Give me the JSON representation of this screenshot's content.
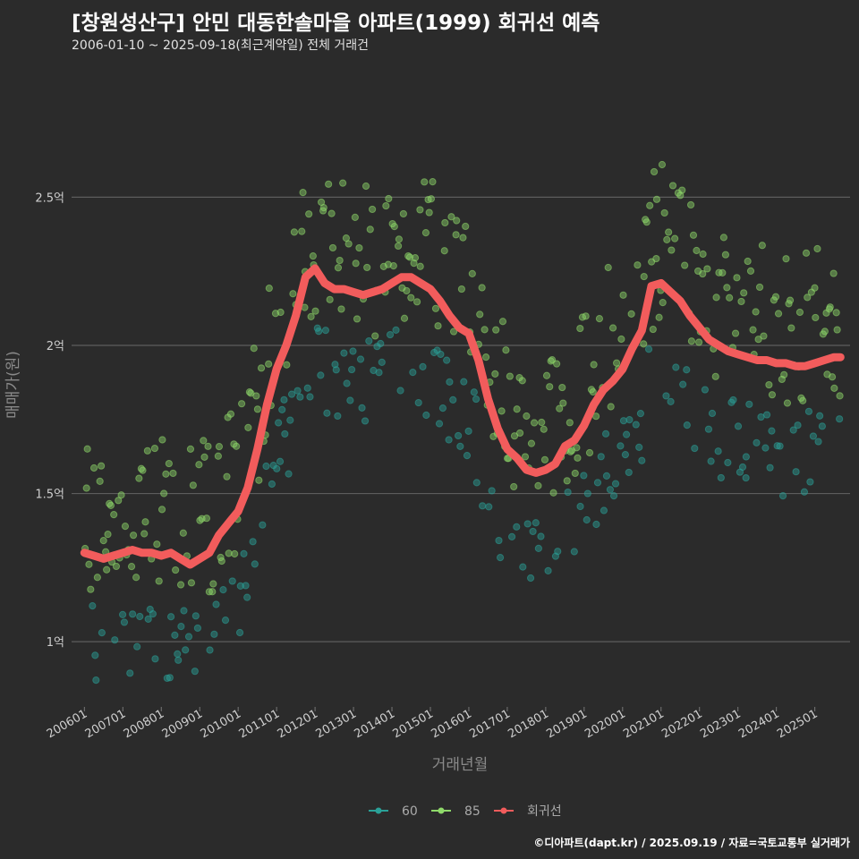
{
  "header": {
    "title": "[창원성산구] 안민 대동한솔마을 아파트(1999) 회귀선 예측",
    "subtitle": "2006-01-10 ~ 2025-09-18(최근계약일) 전체 거래건"
  },
  "credit": "©디아파트(dapt.kr) / 2025.09.19 / 자료=국토교통부 실거래가",
  "colors": {
    "background": "#2b2b2b",
    "series_60": "#2aa198",
    "series_85": "#8fd96a",
    "regression": "#f25c5c",
    "gridline": "#5c5c5c"
  },
  "chart_data": {
    "type": "scatter",
    "xlabel": "거래년월",
    "ylabel": "매매가(원)",
    "x_range": [
      "2005-09",
      "2025-12"
    ],
    "ylim": [
      0.78,
      2.93
    ],
    "y_unit": "억",
    "y_ticks": [
      {
        "value": 1.0,
        "label": "1억"
      },
      {
        "value": 1.5,
        "label": "1.5억"
      },
      {
        "value": 2.0,
        "label": "2억"
      },
      {
        "value": 2.5,
        "label": "2.5억"
      }
    ],
    "x_ticks": [
      "200601",
      "200701",
      "200801",
      "200901",
      "201001",
      "201101",
      "201201",
      "201301",
      "201401",
      "201501",
      "201601",
      "201701",
      "201801",
      "201901",
      "202001",
      "202101",
      "202201",
      "202301",
      "202401",
      "202501"
    ],
    "grid": "horizontal",
    "legend": [
      {
        "name": "60",
        "color": "#2aa198",
        "kind": "point"
      },
      {
        "name": "85",
        "color": "#8fd96a",
        "kind": "point"
      },
      {
        "name": "회귀선",
        "color": "#f25c5c",
        "kind": "line"
      }
    ],
    "legend_position": "bottom",
    "series": [
      {
        "name": "회귀선",
        "type": "line",
        "points": [
          [
            "2006-01",
            1.3
          ],
          [
            "2006-04",
            1.29
          ],
          [
            "2006-07",
            1.28
          ],
          [
            "2006-10",
            1.29
          ],
          [
            "2007-01",
            1.3
          ],
          [
            "2007-04",
            1.31
          ],
          [
            "2007-07",
            1.3
          ],
          [
            "2007-10",
            1.3
          ],
          [
            "2008-01",
            1.29
          ],
          [
            "2008-04",
            1.3
          ],
          [
            "2008-07",
            1.28
          ],
          [
            "2008-10",
            1.26
          ],
          [
            "2009-01",
            1.28
          ],
          [
            "2009-04",
            1.3
          ],
          [
            "2009-07",
            1.36
          ],
          [
            "2009-10",
            1.4
          ],
          [
            "2010-01",
            1.44
          ],
          [
            "2010-04",
            1.52
          ],
          [
            "2010-07",
            1.65
          ],
          [
            "2010-10",
            1.8
          ],
          [
            "2011-01",
            1.92
          ],
          [
            "2011-04",
            2.0
          ],
          [
            "2011-07",
            2.1
          ],
          [
            "2011-10",
            2.23
          ],
          [
            "2012-01",
            2.26
          ],
          [
            "2012-04",
            2.21
          ],
          [
            "2012-07",
            2.19
          ],
          [
            "2012-10",
            2.19
          ],
          [
            "2013-01",
            2.18
          ],
          [
            "2013-04",
            2.17
          ],
          [
            "2013-07",
            2.18
          ],
          [
            "2013-10",
            2.19
          ],
          [
            "2014-01",
            2.21
          ],
          [
            "2014-04",
            2.23
          ],
          [
            "2014-07",
            2.23
          ],
          [
            "2014-10",
            2.21
          ],
          [
            "2015-01",
            2.19
          ],
          [
            "2015-04",
            2.15
          ],
          [
            "2015-07",
            2.1
          ],
          [
            "2015-10",
            2.06
          ],
          [
            "2016-01",
            2.04
          ],
          [
            "2016-04",
            1.95
          ],
          [
            "2016-07",
            1.82
          ],
          [
            "2016-10",
            1.72
          ],
          [
            "2017-01",
            1.65
          ],
          [
            "2017-04",
            1.62
          ],
          [
            "2017-07",
            1.58
          ],
          [
            "2017-10",
            1.57
          ],
          [
            "2018-01",
            1.58
          ],
          [
            "2018-04",
            1.6
          ],
          [
            "2018-07",
            1.66
          ],
          [
            "2018-10",
            1.68
          ],
          [
            "2019-01",
            1.73
          ],
          [
            "2019-04",
            1.8
          ],
          [
            "2019-07",
            1.85
          ],
          [
            "2019-10",
            1.88
          ],
          [
            "2020-01",
            1.92
          ],
          [
            "2020-04",
            1.99
          ],
          [
            "2020-07",
            2.05
          ],
          [
            "2020-10",
            2.2
          ],
          [
            "2021-01",
            2.21
          ],
          [
            "2021-04",
            2.18
          ],
          [
            "2021-07",
            2.15
          ],
          [
            "2021-10",
            2.1
          ],
          [
            "2022-01",
            2.06
          ],
          [
            "2022-04",
            2.02
          ],
          [
            "2022-07",
            2.0
          ],
          [
            "2022-10",
            1.98
          ],
          [
            "2023-01",
            1.97
          ],
          [
            "2023-04",
            1.96
          ],
          [
            "2023-07",
            1.95
          ],
          [
            "2023-10",
            1.95
          ],
          [
            "2024-01",
            1.94
          ],
          [
            "2024-04",
            1.94
          ],
          [
            "2024-07",
            1.93
          ],
          [
            "2024-10",
            1.93
          ],
          [
            "2025-01",
            1.94
          ],
          [
            "2025-04",
            1.95
          ],
          [
            "2025-07",
            1.96
          ],
          [
            "2025-09",
            1.96
          ]
        ]
      }
    ]
  }
}
